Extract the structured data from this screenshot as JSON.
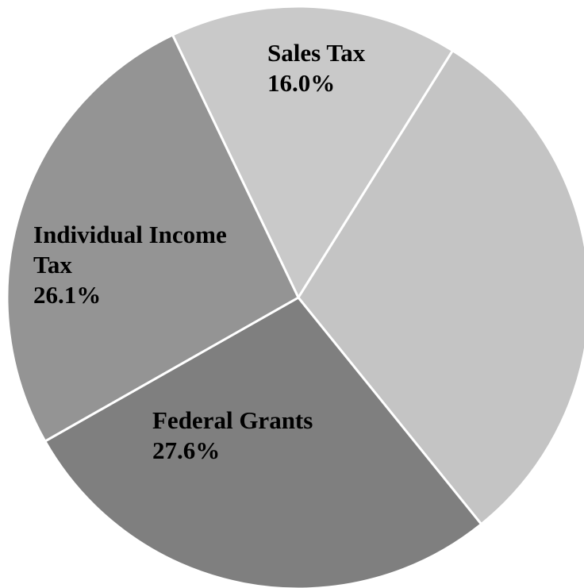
{
  "chart_data": {
    "type": "pie",
    "slices": [
      {
        "name": "Sales Tax",
        "label_lines": [
          "Sales Tax"
        ],
        "value": 16.0,
        "value_text": "16.0%",
        "color": "#c9c9c9"
      },
      {
        "name": "",
        "label_lines": [],
        "value": 30.3,
        "value_text": "",
        "color": "#c4c4c4"
      },
      {
        "name": "Federal Grants",
        "label_lines": [
          "Federal Grants"
        ],
        "value": 27.6,
        "value_text": "27.6%",
        "color": "#7f7f7f"
      },
      {
        "name": "Individual Income Tax",
        "label_lines": [
          "Individual Income",
          "Tax"
        ],
        "value": 26.1,
        "value_text": "26.1%",
        "color": "#949494"
      }
    ],
    "start_angle_deg": -25.6,
    "direction": "clockwise",
    "slice_border_color": "#ffffff",
    "legend": "none",
    "labels": "inside"
  }
}
